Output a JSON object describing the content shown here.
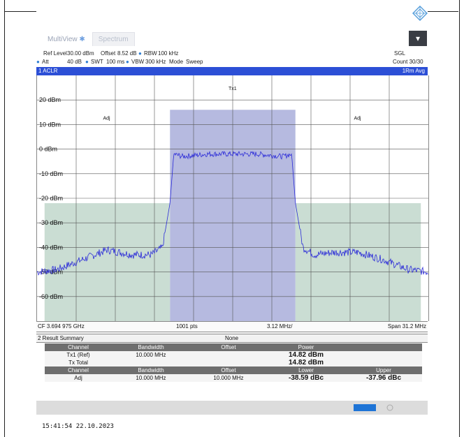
{
  "tabs": [
    {
      "label": "MultiView"
    },
    {
      "label": "Spectrum"
    }
  ],
  "params": {
    "ref_level_label": "Ref Level",
    "ref_level_value": "30.00 dBm",
    "offset_label": "Offset",
    "offset_value": "8.52 dB",
    "rbw_label": "RBW",
    "rbw_value": "100 kHz",
    "att_label": "Att",
    "att_value": "40 dB",
    "swt_label": "SWT",
    "swt_value": "100 ms",
    "vbw_label": "VBW",
    "vbw_value": "300 kHz",
    "mode_label": "Mode",
    "mode_value": "Sweep",
    "sgl": "SGL",
    "count": "Count 30/30"
  },
  "window": {
    "title": "1 ACLR",
    "trace": "1Rm Avg"
  },
  "plot": {
    "y_ticks": [
      "20 dBm",
      "10 dBm",
      "0 dBm",
      "-10 dBm",
      "-20 dBm",
      "-30 dBm",
      "-40 dBm",
      "-50 dBm",
      "-60 dBm"
    ],
    "labels": {
      "tx": "Tx1",
      "adj_left": "Adj",
      "adj_right": "Adj"
    }
  },
  "chart_data": {
    "type": "line",
    "title": "1 ACLR",
    "xlabel": "",
    "ylabel": "",
    "ylim": [
      -70,
      30
    ],
    "xlim_mhz": [
      -15.6,
      15.6
    ],
    "grid": true,
    "channels": [
      {
        "name": "Tx1",
        "from_mhz": -5.0,
        "to_mhz": 5.0,
        "limit_dbm": 16
      },
      {
        "name": "Adj",
        "from_mhz": -15.0,
        "to_mhz": -5.0,
        "limit_dbm": -22
      },
      {
        "name": "Adj",
        "from_mhz": 5.0,
        "to_mhz": 15.0,
        "limit_dbm": -22
      }
    ],
    "series": [
      {
        "x_mhz": [
          -15.6,
          -14.0,
          -12.0,
          -10.0,
          -8.0,
          -6.5,
          -5.6,
          -5.0,
          -4.7,
          -4.0,
          -2.0,
          0.0,
          2.0,
          4.0,
          4.7,
          5.0,
          5.6,
          6.5,
          8.0,
          10.0,
          12.0,
          14.0,
          15.6
        ],
        "y_dbm": [
          -50,
          -49,
          -45,
          -41,
          -43,
          -43,
          -40,
          -22,
          -2,
          -3,
          -2,
          -2,
          -2,
          -3,
          -2,
          -22,
          -40,
          -43,
          -42,
          -42,
          -45,
          -49,
          -50
        ]
      }
    ]
  },
  "footer": {
    "cf": "CF 3.694 975 GHz",
    "pts": "1001 pts",
    "div": "3.12 MHz/",
    "span": "Span 31.2 MHz"
  },
  "summary": {
    "title": "2 Result Summary",
    "mode": "None",
    "headers1": [
      "Channel",
      "Bandwidth",
      "Offset",
      "Power",
      ""
    ],
    "rows1": [
      [
        "Tx1 (Ref)",
        "10.000 MHz",
        "",
        "14.82 dBm",
        ""
      ],
      [
        "Tx Total",
        "",
        "",
        "14.82 dBm",
        ""
      ]
    ],
    "headers2": [
      "Channel",
      "Bandwidth",
      "Offset",
      "Lower",
      "Upper"
    ],
    "rows2": [
      [
        "Adj",
        "10.000 MHz",
        "10.000 MHz",
        "-38.59 dBc",
        "-37.96 dBc"
      ]
    ]
  },
  "timestamp": "15:41:54  22.10.2023",
  "colors": {
    "trace": "#2a2ad8",
    "tx_band": "#a9aedb",
    "adj_band": "#b8d2c4",
    "header_bar": "#2c4fd6"
  }
}
